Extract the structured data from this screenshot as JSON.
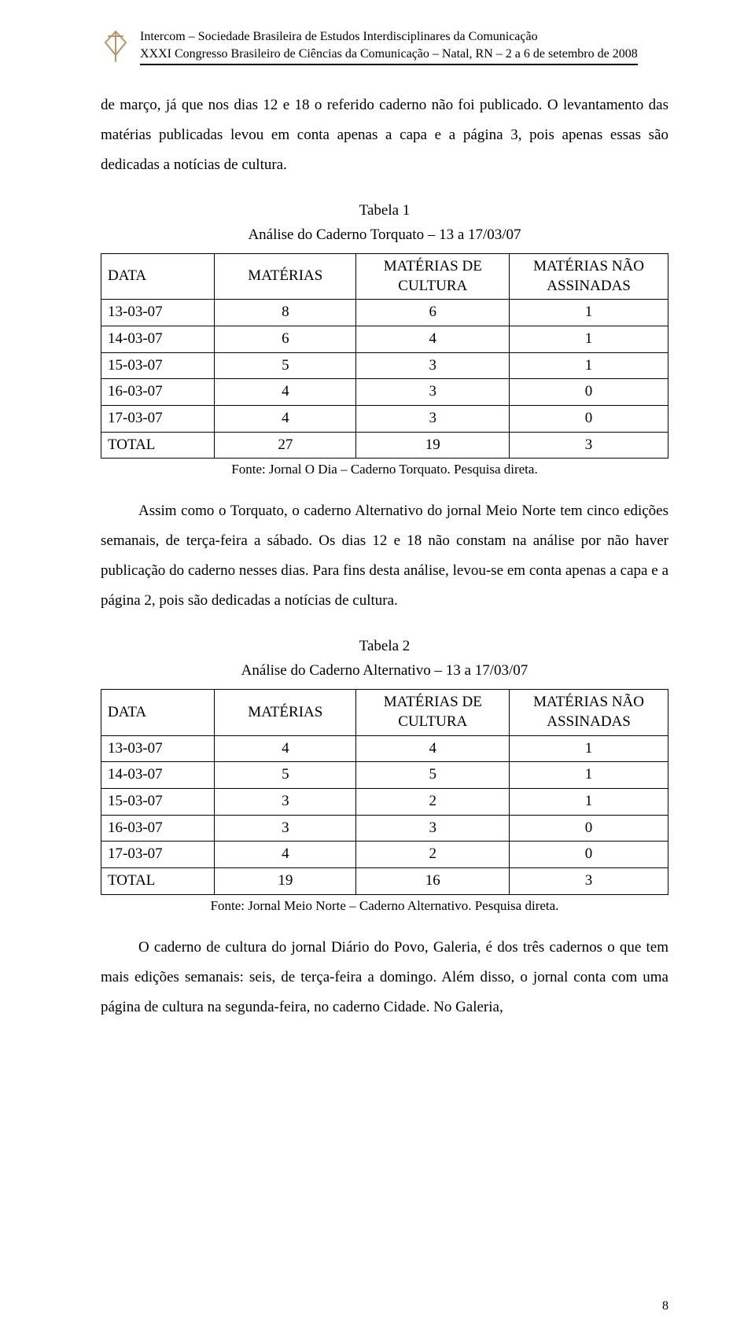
{
  "header": {
    "line1": "Intercom – Sociedade Brasileira de Estudos Interdisciplinares da Comunicação",
    "line2": "XXXI Congresso Brasileiro de Ciências da Comunicação – Natal, RN – 2 a 6 de setembro de 2008"
  },
  "logo": {
    "stroke": "#b8946a",
    "fill": "none"
  },
  "para1": "de março, já que nos dias 12 e 18 o referido caderno não foi publicado. O levantamento das matérias publicadas levou em conta apenas a capa e a página 3, pois apenas essas são dedicadas a notícias de cultura.",
  "table1": {
    "title_line1": "Tabela 1",
    "title_line2": "Análise do Caderno Torquato – 13 a 17/03/07",
    "columns": [
      "DATA",
      "MATÉRIAS",
      "MATÉRIAS DE CULTURA",
      "MATÉRIAS NÃO ASSINADAS"
    ],
    "rows": [
      [
        "13-03-07",
        "8",
        "6",
        "1"
      ],
      [
        "14-03-07",
        "6",
        "4",
        "1"
      ],
      [
        "15-03-07",
        "5",
        "3",
        "1"
      ],
      [
        "16-03-07",
        "4",
        "3",
        "0"
      ],
      [
        "17-03-07",
        "4",
        "3",
        "0"
      ],
      [
        "TOTAL",
        "27",
        "19",
        "3"
      ]
    ],
    "caption": "Fonte: Jornal O Dia – Caderno Torquato. Pesquisa direta."
  },
  "para2": "Assim como o Torquato, o caderno Alternativo do jornal Meio Norte tem cinco edições semanais, de terça-feira a sábado. Os dias 12 e 18 não constam na análise por não haver publicação do caderno nesses dias. Para fins desta análise, levou-se em conta apenas a capa e a página 2, pois são dedicadas a notícias de cultura.",
  "table2": {
    "title_line1": "Tabela 2",
    "title_line2": "Análise do Caderno Alternativo – 13 a 17/03/07",
    "columns": [
      "DATA",
      "MATÉRIAS",
      "MATÉRIAS DE CULTURA",
      "MATÉRIAS NÃO ASSINADAS"
    ],
    "rows": [
      [
        "13-03-07",
        "4",
        "4",
        "1"
      ],
      [
        "14-03-07",
        "5",
        "5",
        "1"
      ],
      [
        "15-03-07",
        "3",
        "2",
        "1"
      ],
      [
        "16-03-07",
        "3",
        "3",
        "0"
      ],
      [
        "17-03-07",
        "4",
        "2",
        "0"
      ],
      [
        "TOTAL",
        "19",
        "16",
        "3"
      ]
    ],
    "caption": "Fonte: Jornal Meio Norte – Caderno Alternativo. Pesquisa direta."
  },
  "para3": "O caderno de cultura do jornal Diário do Povo, Galeria, é dos três cadernos o que tem mais edições semanais: seis, de terça-feira a domingo. Além disso, o jornal conta com uma página de cultura na segunda-feira, no caderno Cidade. No Galeria,",
  "page_number": "8"
}
